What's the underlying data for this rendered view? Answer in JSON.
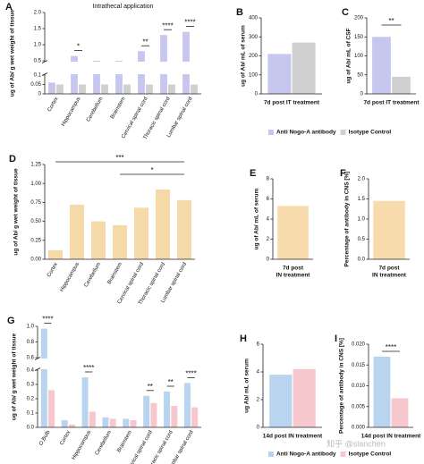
{
  "watermark": "知乎 @slanchen",
  "chart_data": [
    {
      "panel": "A",
      "type": "bar",
      "title": "Intrathecal application",
      "ylabel": "ug of Ab/ g wet weight of tissue",
      "categories": [
        "Cortex",
        "Hippocampus",
        "Cerebellum",
        "Brainstem",
        "Cervical spinal cord",
        "Thoracic spinal cord",
        "Lumbar spinal cord"
      ],
      "series": [
        {
          "name": "Anti Nogo-A antibody",
          "color": "#c6c6ef",
          "values": [
            0.06,
            0.65,
            0.5,
            0.5,
            0.8,
            1.3,
            1.4
          ]
        },
        {
          "name": "Isotype Control",
          "color": "#d0d0d0",
          "values": [
            0.05,
            0.05,
            0.05,
            0.05,
            0.05,
            0.05,
            0.05
          ]
        }
      ],
      "significance": [
        null,
        "*",
        null,
        null,
        "**",
        "****",
        "****"
      ],
      "ylim": [
        0,
        2
      ],
      "axis_break": [
        0.1,
        0.5
      ],
      "yticks": [
        0,
        0.05,
        0.1,
        0.5,
        {
          "value": 1,
          "label": "1.0"
        },
        1.5,
        {
          "value": 2,
          "label": "2.0"
        }
      ]
    },
    {
      "panel": "B",
      "type": "bar",
      "ylabel": "ug of Ab/ mL of serum",
      "xlabel": [
        "7d post IT treatment"
      ],
      "categories": [
        null
      ],
      "series": [
        {
          "color": "#c6c6ef",
          "values": [
            210
          ]
        },
        {
          "color": "#d0d0d0",
          "values": [
            270
          ]
        }
      ],
      "ylim": [
        0,
        400
      ],
      "yticks": [
        0,
        100,
        200,
        300,
        400
      ]
    },
    {
      "panel": "C",
      "type": "bar",
      "ylabel": "ug of Ab/ mL of CSF",
      "xlabel": [
        "7d post IT treatment"
      ],
      "categories": [
        null
      ],
      "series": [
        {
          "color": "#c6c6ef",
          "values": [
            150
          ]
        },
        {
          "color": "#d0d0d0",
          "values": [
            45
          ]
        }
      ],
      "significance": "**",
      "ylim": [
        0,
        200
      ],
      "yticks": [
        0,
        50,
        100,
        150,
        200
      ]
    },
    {
      "panel": "D",
      "type": "bar",
      "ylabel": "ug of Ab/ g wet weight of tissue",
      "categories": [
        "Cortex",
        "Hippocampus",
        "Cerebellum",
        "Brainstem",
        "Cervical spinal cord",
        "Thoracic spinal cord",
        "Lumbar spinal cord"
      ],
      "series": [
        {
          "color": "#f6d9a8",
          "values": [
            0.12,
            0.72,
            0.5,
            0.45,
            0.68,
            0.92,
            0.78
          ]
        }
      ],
      "brackets": [
        {
          "text": "***",
          "between": [
            "Cortex",
            "Lumbar spinal cord"
          ]
        },
        {
          "text": "*",
          "between": [
            "Brainstem",
            "Lumbar spinal cord"
          ]
        }
      ],
      "ylim": [
        0,
        1.25
      ],
      "yticks": [
        {
          "value": 0,
          "label": "0.00"
        },
        0.25,
        {
          "value": 0.5,
          "label": "0.50"
        },
        0.75,
        {
          "value": 1,
          "label": "1.00"
        },
        1.25
      ]
    },
    {
      "panel": "E",
      "type": "bar",
      "ylabel": "ug of Ab/ mL of serum",
      "xlabel": [
        "7d post",
        "IN treatment"
      ],
      "categories": [
        null
      ],
      "series": [
        {
          "color": "#f9dcae",
          "values": [
            5.3
          ]
        }
      ],
      "ylim": [
        0,
        8
      ],
      "yticks": [
        0,
        2,
        4,
        6,
        8
      ]
    },
    {
      "panel": "F",
      "type": "bar",
      "ylabel": "Percentage of antibody in CNS [%]",
      "xlabel": [
        "7d post",
        "IN treatment"
      ],
      "categories": [
        null
      ],
      "series": [
        {
          "color": "#f9dcae",
          "values": [
            1.45
          ]
        }
      ],
      "ylim": [
        0,
        2
      ],
      "yticks": [
        {
          "value": 0,
          "label": "0.0"
        },
        0.5,
        {
          "value": 1,
          "label": "1.0"
        },
        1.5,
        {
          "value": 2,
          "label": "2.0"
        }
      ]
    },
    {
      "panel": "G",
      "type": "bar",
      "ylabel": "ug of Ab/ g wet weight of tissue",
      "categories": [
        "O.Bulb",
        "Cortex",
        "Hippocampus",
        "Cerebellum",
        "Brainstem",
        "Cervical spinal cord",
        "Thoracic spinal cord",
        "Lumbar spinal cord"
      ],
      "series": [
        {
          "name": "Anti Nogo-A antibody",
          "color": "#b9d4ee",
          "values": [
            0.97,
            0.05,
            0.35,
            0.07,
            0.06,
            0.22,
            0.25,
            0.31
          ]
        },
        {
          "name": "Isotype Control",
          "color": "#f7c7ce",
          "values": [
            0.26,
            0.02,
            0.11,
            0.06,
            0.05,
            0.17,
            0.15,
            0.14
          ]
        }
      ],
      "significance": [
        "****",
        null,
        "****",
        null,
        null,
        "**",
        "**",
        "****"
      ],
      "ylim": [
        0,
        1
      ],
      "axis_break": [
        0.4,
        0.6
      ],
      "yticks": [
        {
          "value": 0,
          "label": "0.0"
        },
        0.1,
        0.2,
        0.3,
        0.4,
        0.6,
        0.8,
        {
          "value": 1,
          "label": "1.0"
        }
      ]
    },
    {
      "panel": "H",
      "type": "bar",
      "ylabel": "ug Ab/ mL of serum",
      "xlabel": [
        "14d post IN treatment"
      ],
      "categories": [
        null
      ],
      "series": [
        {
          "color": "#b9d4ee",
          "values": [
            3.8
          ]
        },
        {
          "color": "#f7c7ce",
          "values": [
            4.2
          ]
        }
      ],
      "ylim": [
        0,
        6
      ],
      "yticks": [
        0,
        2,
        4,
        6
      ]
    },
    {
      "panel": "I",
      "type": "bar",
      "ylabel": "Percentage of antibody in CNS [%]",
      "xlabel": [
        "14d post IN treatment"
      ],
      "categories": [
        null
      ],
      "series": [
        {
          "color": "#b9d4ee",
          "values": [
            0.017
          ]
        },
        {
          "color": "#f7c7ce",
          "values": [
            0.007
          ]
        }
      ],
      "significance": "****",
      "ylim": [
        0,
        0.02
      ],
      "yticks": [
        {
          "value": 0,
          "label": "0.000"
        },
        0.005,
        {
          "value": 0.01,
          "label": "0.010"
        },
        0.015,
        {
          "value": 0.02,
          "label": "0.020"
        }
      ]
    }
  ]
}
